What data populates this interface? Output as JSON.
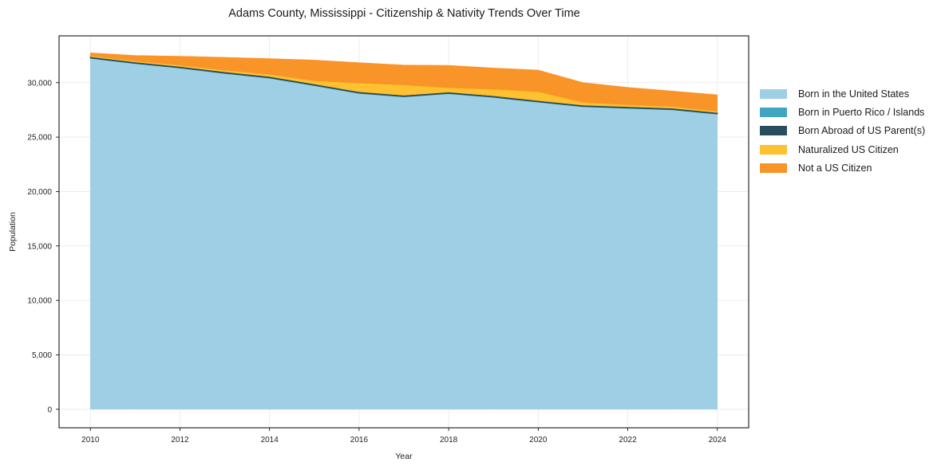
{
  "chart_data": {
    "type": "area",
    "stacked": true,
    "title": "Adams County, Mississippi - Citizenship & Nativity Trends Over Time",
    "xlabel": "Year",
    "ylabel": "Population",
    "x": [
      2010,
      2011,
      2012,
      2013,
      2014,
      2015,
      2016,
      2017,
      2018,
      2019,
      2020,
      2021,
      2022,
      2023,
      2024
    ],
    "xticks": [
      2010,
      2012,
      2014,
      2016,
      2018,
      2020,
      2022,
      2024
    ],
    "yticks": [
      0,
      5000,
      10000,
      15000,
      20000,
      25000,
      30000
    ],
    "ytick_labels": [
      "0",
      "5,000",
      "10,000",
      "15,000",
      "20,000",
      "25,000",
      "30,000"
    ],
    "ylim": [
      -1700,
      34300
    ],
    "xlim": [
      2009.3,
      2024.7
    ],
    "grid": true,
    "legend_position": "right",
    "series": [
      {
        "name": "Born in the United States",
        "color": "#9ecfe5",
        "values": [
          32250,
          31760,
          31350,
          30860,
          30430,
          29740,
          29030,
          28710,
          29000,
          28660,
          28220,
          27800,
          27660,
          27520,
          27120
        ]
      },
      {
        "name": "Born in Puerto Rico / Islands",
        "color": "#3ea6c3",
        "values": [
          20,
          20,
          20,
          20,
          20,
          20,
          20,
          20,
          20,
          20,
          20,
          20,
          20,
          20,
          20
        ]
      },
      {
        "name": "Born Abroad of US Parent(s)",
        "color": "#264e5f",
        "values": [
          110,
          110,
          110,
          110,
          110,
          110,
          110,
          110,
          110,
          110,
          110,
          110,
          110,
          110,
          110
        ]
      },
      {
        "name": "Naturalized US Citizen",
        "color": "#ffc12f",
        "values": [
          90,
          100,
          120,
          150,
          200,
          300,
          800,
          950,
          400,
          600,
          820,
          250,
          180,
          150,
          120
        ]
      },
      {
        "name": "Not a US Citizen",
        "color": "#f99428",
        "values": [
          270,
          510,
          830,
          1190,
          1450,
          1910,
          1880,
          1830,
          2060,
          1960,
          1990,
          1830,
          1600,
          1430,
          1520
        ]
      }
    ]
  }
}
